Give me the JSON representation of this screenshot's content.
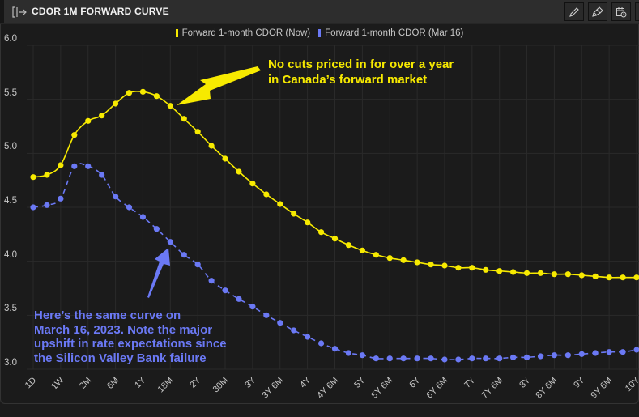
{
  "window": {
    "title": "CDOR 1M FORWARD CURVE",
    "toolbar": [
      {
        "icon": "pencil-icon",
        "label": "Edit"
      },
      {
        "icon": "paintbrush-icon",
        "label": "Style"
      },
      {
        "icon": "calendar-clock-icon",
        "label": "Date"
      }
    ]
  },
  "annotations": {
    "yellow": [
      "No cuts priced in for over a year",
      "in Canada’s forward market"
    ],
    "blue": [
      "Here’s the same curve on",
      "March 16, 2023. Note the major",
      "upshift in rate expectations since",
      "the Silicon Valley Bank failure"
    ]
  },
  "colors": {
    "now": "#f7ea00",
    "mar16": "#6b79f5",
    "grid": "#2a2a2a",
    "background": "#1b1b1b"
  },
  "chart_data": {
    "type": "line",
    "title": "CDOR 1M FORWARD CURVE",
    "xlabel": "",
    "ylabel": "",
    "ylim": [
      3.0,
      6.0
    ],
    "yticks": [
      "6.0",
      "5.5",
      "5.0",
      "4.5",
      "4.0",
      "3.5",
      "3.0"
    ],
    "grid": true,
    "legend_position": "top-center",
    "x_tick_labels": [
      "1D",
      "1W",
      "2M",
      "6M",
      "1Y",
      "18M",
      "2Y",
      "30M",
      "3Y",
      "3Y 6M",
      "4Y",
      "4Y 6M",
      "5Y",
      "5Y 6M",
      "6Y",
      "6Y 6M",
      "7Y",
      "7Y 6M",
      "8Y",
      "8Y 6M",
      "9Y",
      "9Y 6M",
      "10Y"
    ],
    "series": [
      {
        "name": "Forward 1-month CDOR (Now)",
        "style": "solid",
        "color": "#f7ea00",
        "values": [
          4.78,
          4.8,
          4.89,
          5.17,
          5.3,
          5.35,
          5.46,
          5.56,
          5.57,
          5.53,
          5.44,
          5.32,
          5.2,
          5.07,
          4.95,
          4.83,
          4.72,
          4.62,
          4.53,
          4.44,
          4.36,
          4.27,
          4.21,
          4.15,
          4.1,
          4.06,
          4.03,
          4.01,
          3.99,
          3.97,
          3.96,
          3.94,
          3.94,
          3.92,
          3.91,
          3.9,
          3.89,
          3.89,
          3.88,
          3.88,
          3.87,
          3.86,
          3.85,
          3.85,
          3.85
        ]
      },
      {
        "name": "Forward 1-month CDOR (Mar 16)",
        "style": "dashed",
        "color": "#6b79f5",
        "values": [
          4.5,
          4.52,
          4.58,
          4.88,
          4.88,
          4.8,
          4.6,
          4.5,
          4.41,
          4.3,
          4.18,
          4.06,
          3.97,
          3.82,
          3.73,
          3.65,
          3.58,
          3.5,
          3.43,
          3.36,
          3.3,
          3.24,
          3.19,
          3.15,
          3.13,
          3.1,
          3.1,
          3.1,
          3.1,
          3.1,
          3.09,
          3.09,
          3.1,
          3.1,
          3.1,
          3.11,
          3.11,
          3.12,
          3.13,
          3.13,
          3.14,
          3.15,
          3.16,
          3.16,
          3.18
        ]
      }
    ]
  }
}
